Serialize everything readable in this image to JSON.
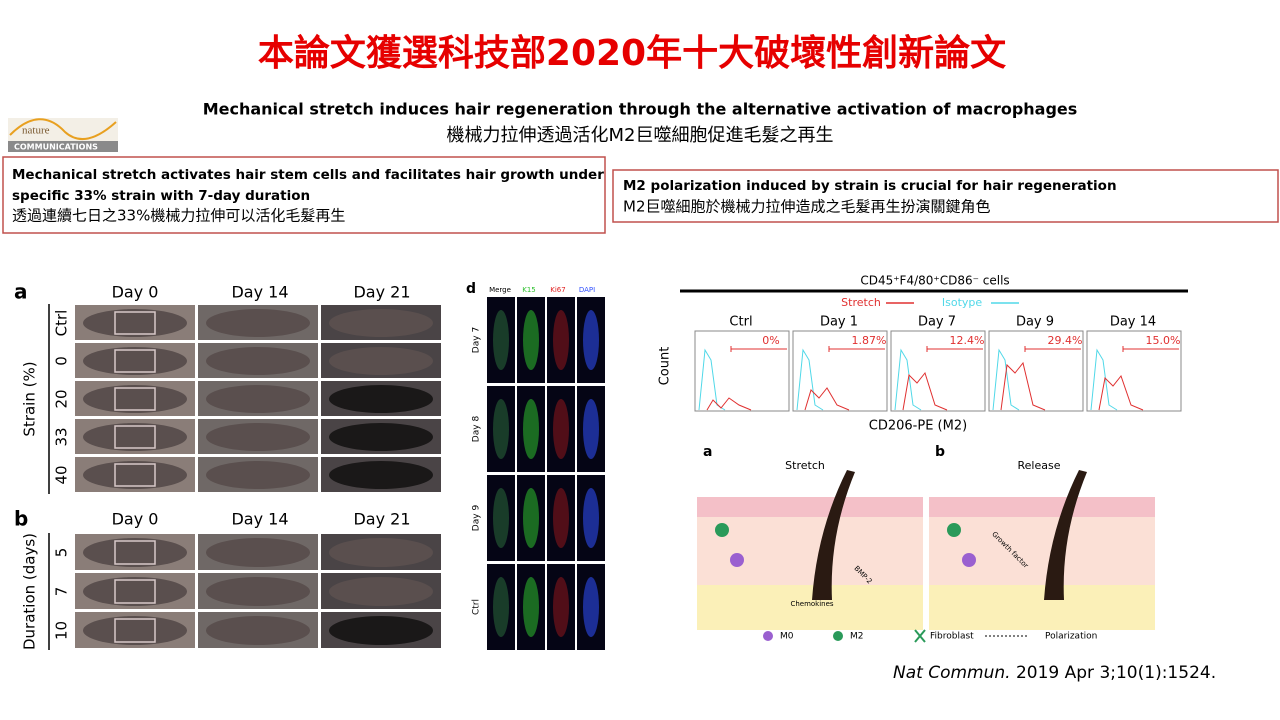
{
  "title": "本論文獲選科技部2020年十大破壞性創新論文",
  "subtitle_en": "Mechanical stretch induces hair regeneration through the alternative activation of macrophages",
  "subtitle_zh": "機械力拉伸透過活化M2巨噬細胞促進毛髮之再生",
  "logo": {
    "line1": "nature",
    "line2": "COMMUNICATIONS"
  },
  "boxes": [
    {
      "en_line1": "Mechanical stretch activates hair stem cells and facilitates hair growth under",
      "en_line2": "specific 33% strain with 7-day duration",
      "zh": "透過連續七日之33%機械力拉伸可以活化毛髮再生"
    },
    {
      "en_line1": "M2 polarization induced by strain is crucial for hair regeneration",
      "zh": "M2巨噬細胞於機械力拉伸造成之毛髮再生扮演關鍵角色"
    }
  ],
  "figure_a": {
    "panel": "a",
    "columns": [
      "Day 0",
      "Day 14",
      "Day 21"
    ],
    "rows": [
      "Ctrl",
      "0",
      "20",
      "33",
      "40"
    ],
    "axis": "Strain (%)"
  },
  "figure_b": {
    "panel": "b",
    "columns": [
      "Day 0",
      "Day 14",
      "Day 21"
    ],
    "rows": [
      "5",
      "7",
      "10"
    ],
    "axis": "Duration (days)"
  },
  "figure_d": {
    "panel": "d",
    "channels": [
      "Merge",
      "K15",
      "Ki67",
      "DAPI"
    ],
    "rows": [
      "Day 7",
      "Day 8",
      "Day 9",
      "Ctrl"
    ]
  },
  "flow": {
    "title": "CD45⁺F4/80⁺CD86⁻ cells",
    "legend": [
      "Stretch",
      "Isotype"
    ],
    "panels": [
      {
        "label": "Ctrl",
        "pct": "0%"
      },
      {
        "label": "Day 1",
        "pct": "1.87%"
      },
      {
        "label": "Day 7",
        "pct": "12.4%"
      },
      {
        "label": "Day 9",
        "pct": "29.4%"
      },
      {
        "label": "Day 14",
        "pct": "15.0%"
      }
    ],
    "y_label": "Count",
    "x_label": "CD206-PE (M2)"
  },
  "diagram": {
    "panels": [
      {
        "letter": "a",
        "title": "Stretch"
      },
      {
        "letter": "b",
        "title": "Release"
      }
    ],
    "labels": [
      "Chemokines",
      "BMP-2",
      "Growth factor"
    ],
    "legend": [
      "M0",
      "M2",
      "Fibroblast",
      "Polarization"
    ]
  },
  "citation": {
    "journal": "Nat Commun.",
    "rest": " 2019 Apr 3;10(1):1524."
  }
}
